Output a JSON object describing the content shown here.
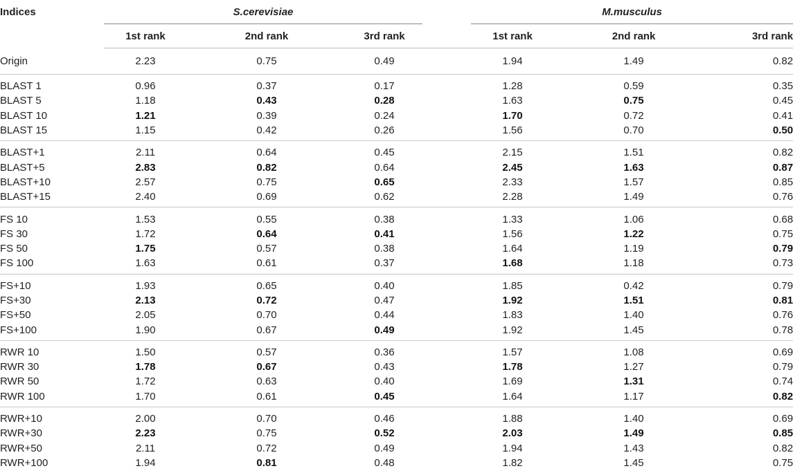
{
  "header": {
    "indices": "Indices",
    "species1": "S.cerevisiae",
    "species2": "M.musculus",
    "ranks": [
      "1st rank",
      "2nd rank",
      "3rd rank"
    ]
  },
  "groups": [
    [
      {
        "label": "Origin",
        "vals": [
          "2.23",
          "0.75",
          "0.49",
          "1.94",
          "1.49",
          "0.82"
        ],
        "bold": []
      }
    ],
    [
      {
        "label": "BLAST 1",
        "vals": [
          "0.96",
          "0.37",
          "0.17",
          "1.28",
          "0.59",
          "0.35"
        ],
        "bold": []
      },
      {
        "label": "BLAST 5",
        "vals": [
          "1.18",
          "0.43",
          "0.28",
          "1.63",
          "0.75",
          "0.45"
        ],
        "bold": [
          1,
          2,
          4
        ]
      },
      {
        "label": "BLAST 10",
        "vals": [
          "1.21",
          "0.39",
          "0.24",
          "1.70",
          "0.72",
          "0.41"
        ],
        "bold": [
          0,
          3
        ]
      },
      {
        "label": "BLAST 15",
        "vals": [
          "1.15",
          "0.42",
          "0.26",
          "1.56",
          "0.70",
          "0.50"
        ],
        "bold": [
          5
        ]
      }
    ],
    [
      {
        "label": "BLAST+1",
        "vals": [
          "2.11",
          "0.64",
          "0.45",
          "2.15",
          "1.51",
          "0.82"
        ],
        "bold": []
      },
      {
        "label": "BLAST+5",
        "vals": [
          "2.83",
          "0.82",
          "0.64",
          "2.45",
          "1.63",
          "0.87"
        ],
        "bold": [
          0,
          1,
          3,
          4,
          5
        ]
      },
      {
        "label": "BLAST+10",
        "vals": [
          "2.57",
          "0.75",
          "0.65",
          "2.33",
          "1.57",
          "0.85"
        ],
        "bold": [
          2
        ]
      },
      {
        "label": "BLAST+15",
        "vals": [
          "2.40",
          "0.69",
          "0.62",
          "2.28",
          "1.49",
          "0.76"
        ],
        "bold": []
      }
    ],
    [
      {
        "label": "FS 10",
        "vals": [
          "1.53",
          "0.55",
          "0.38",
          "1.33",
          "1.06",
          "0.68"
        ],
        "bold": []
      },
      {
        "label": "FS 30",
        "vals": [
          "1.72",
          "0.64",
          "0.41",
          "1.56",
          "1.22",
          "0.75"
        ],
        "bold": [
          1,
          2,
          4
        ]
      },
      {
        "label": "FS 50",
        "vals": [
          "1.75",
          "0.57",
          "0.38",
          "1.64",
          "1.19",
          "0.79"
        ],
        "bold": [
          0,
          5
        ]
      },
      {
        "label": "FS 100",
        "vals": [
          "1.63",
          "0.61",
          "0.37",
          "1.68",
          "1.18",
          "0.73"
        ],
        "bold": [
          3
        ]
      }
    ],
    [
      {
        "label": "FS+10",
        "vals": [
          "1.93",
          "0.65",
          "0.40",
          "1.85",
          "0.42",
          "0.79"
        ],
        "bold": []
      },
      {
        "label": "FS+30",
        "vals": [
          "2.13",
          "0.72",
          "0.47",
          "1.92",
          "1.51",
          "0.81"
        ],
        "bold": [
          0,
          1,
          3,
          4,
          5
        ]
      },
      {
        "label": "FS+50",
        "vals": [
          "2.05",
          "0.70",
          "0.44",
          "1.83",
          "1.40",
          "0.76"
        ],
        "bold": []
      },
      {
        "label": "FS+100",
        "vals": [
          "1.90",
          "0.67",
          "0.49",
          "1.92",
          "1.45",
          "0.78"
        ],
        "bold": [
          2
        ]
      }
    ],
    [
      {
        "label": "RWR 10",
        "vals": [
          "1.50",
          "0.57",
          "0.36",
          "1.57",
          "1.08",
          "0.69"
        ],
        "bold": []
      },
      {
        "label": "RWR 30",
        "vals": [
          "1.78",
          "0.67",
          "0.43",
          "1.78",
          "1.27",
          "0.79"
        ],
        "bold": [
          0,
          1,
          3
        ]
      },
      {
        "label": "RWR 50",
        "vals": [
          "1.72",
          "0.63",
          "0.40",
          "1.69",
          "1.31",
          "0.74"
        ],
        "bold": [
          4
        ]
      },
      {
        "label": "RWR 100",
        "vals": [
          "1.70",
          "0.61",
          "0.45",
          "1.64",
          "1.17",
          "0.82"
        ],
        "bold": [
          2,
          5
        ]
      }
    ],
    [
      {
        "label": "RWR+10",
        "vals": [
          "2.00",
          "0.70",
          "0.46",
          "1.88",
          "1.40",
          "0.69"
        ],
        "bold": []
      },
      {
        "label": "RWR+30",
        "vals": [
          "2.23",
          "0.75",
          "0.52",
          "2.03",
          "1.49",
          "0.85"
        ],
        "bold": [
          0,
          2,
          3,
          4,
          5
        ]
      },
      {
        "label": "RWR+50",
        "vals": [
          "2.11",
          "0.72",
          "0.49",
          "1.94",
          "1.43",
          "0.82"
        ],
        "bold": []
      },
      {
        "label": "RWR+100",
        "vals": [
          "1.94",
          "0.81",
          "0.48",
          "1.82",
          "1.45",
          "0.75"
        ],
        "bold": [
          1
        ]
      }
    ]
  ]
}
